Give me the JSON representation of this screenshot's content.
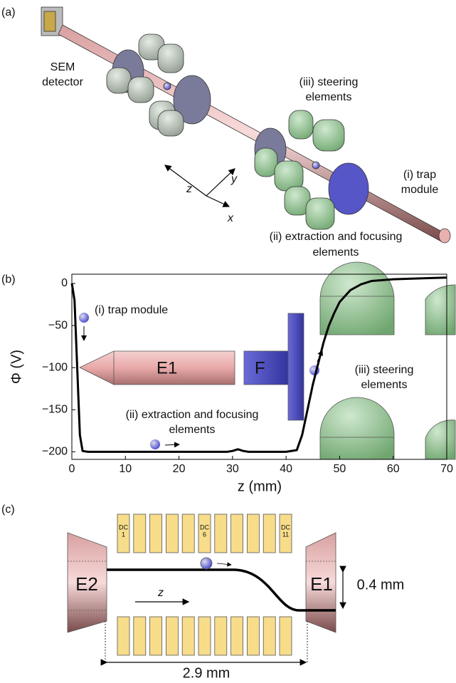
{
  "panel_a": {
    "label": "(a)",
    "sem": [
      "SEM",
      "detector"
    ],
    "steering": [
      "(iii) steering",
      "elements"
    ],
    "trap": [
      "(i) trap",
      "module"
    ],
    "extraction": [
      "(ii) extraction and focusing",
      "elements"
    ],
    "axes": {
      "z": "z",
      "y": "y",
      "x": "x"
    }
  },
  "chart_data": {
    "type": "line",
    "panel_label": "(b)",
    "xlabel": "z (mm)",
    "ylabel": "Φ (V)",
    "x": [
      0,
      0.5,
      1,
      1.5,
      2,
      3,
      10,
      20,
      29,
      30,
      31,
      32,
      33,
      40,
      42,
      43,
      44,
      45,
      46,
      47,
      48,
      49,
      50,
      52,
      54,
      56,
      60,
      65,
      70
    ],
    "series": [
      {
        "color": "#000000",
        "values": [
          0,
          -20,
          -100,
          -180,
          -199,
          -200,
          -200,
          -200,
          -200,
          -199,
          -197,
          -199,
          -200,
          -200,
          -198,
          -180,
          -150,
          -120,
          -95,
          -70,
          -50,
          -35,
          -22,
          -8,
          -1,
          3,
          5,
          6,
          7
        ]
      }
    ],
    "xlim": [
      0,
      70
    ],
    "ylim": [
      -209,
      11
    ],
    "xticks": [
      0,
      10,
      20,
      30,
      40,
      50,
      60,
      70
    ],
    "yticks": [
      0,
      {
        "value": -50,
        "label": "−50"
      },
      {
        "value": -100,
        "label": "−100"
      },
      {
        "value": -150,
        "label": "−150"
      },
      {
        "value": -200,
        "label": "−200"
      }
    ],
    "annotations": {
      "trap": "(i) trap module",
      "extraction": [
        "(ii) extraction and focusing",
        "elements"
      ],
      "e1": "E1",
      "f": "F",
      "steering": [
        "(iii) steering",
        "elements"
      ]
    }
  },
  "panel_c": {
    "label": "(c)",
    "dc": [
      [
        "DC",
        "1"
      ],
      [
        "DC",
        "6"
      ],
      [
        "DC",
        "11"
      ]
    ],
    "e2": "E2",
    "e1": "E1",
    "z": "z",
    "height": "0.4 mm",
    "length": "2.9 mm"
  }
}
